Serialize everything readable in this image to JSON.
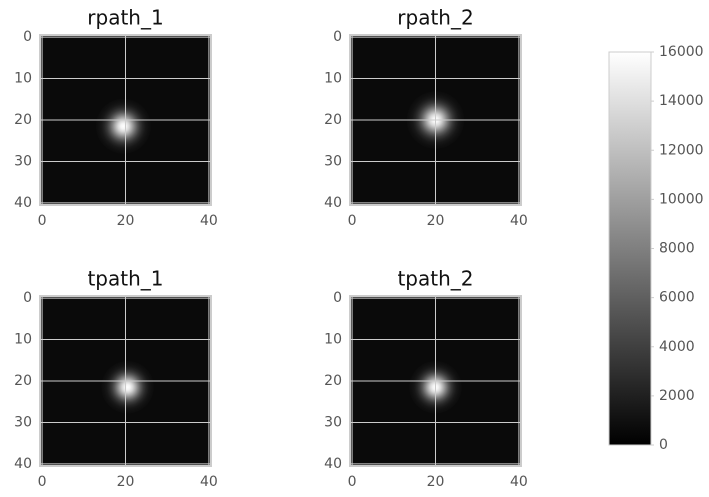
{
  "chart_data": {
    "type": "image",
    "cmap": "gray",
    "clim": [
      0,
      16000
    ],
    "colorbar_ticks": [
      0,
      2000,
      4000,
      6000,
      8000,
      10000,
      12000,
      14000,
      16000
    ],
    "grid": true,
    "panels": [
      {
        "title": "rpath_1",
        "xlim": [
          -0.5,
          40.5
        ],
        "ylim": [
          40.5,
          -0.5
        ],
        "xticks": [
          0,
          20,
          40
        ],
        "yticks": [
          0,
          10,
          20,
          30,
          40
        ],
        "background": 600,
        "spot": {
          "x": 19.5,
          "y": 21.5,
          "peak": 16000,
          "sigma": 2.2
        }
      },
      {
        "title": "rpath_2",
        "xlim": [
          -0.5,
          40.5
        ],
        "ylim": [
          40.5,
          -0.5
        ],
        "xticks": [
          0,
          20,
          40
        ],
        "yticks": [
          0,
          10,
          20,
          30,
          40
        ],
        "background": 600,
        "spot": {
          "x": 20,
          "y": 20,
          "peak": 16000,
          "sigma": 2.3
        }
      },
      {
        "title": "tpath_1",
        "xlim": [
          -0.5,
          40.5
        ],
        "ylim": [
          40.5,
          -0.5
        ],
        "xticks": [
          0,
          20,
          40
        ],
        "yticks": [
          0,
          10,
          20,
          30,
          40
        ],
        "background": 600,
        "spot": {
          "x": 20.5,
          "y": 21.5,
          "peak": 16000,
          "sigma": 2.1
        }
      },
      {
        "title": "tpath_2",
        "xlim": [
          -0.5,
          40.5
        ],
        "ylim": [
          40.5,
          -0.5
        ],
        "xticks": [
          0,
          20,
          40
        ],
        "yticks": [
          0,
          10,
          20,
          30,
          40
        ],
        "background": 600,
        "spot": {
          "x": 20,
          "y": 21.5,
          "peak": 16000,
          "sigma": 2.1
        }
      }
    ]
  }
}
